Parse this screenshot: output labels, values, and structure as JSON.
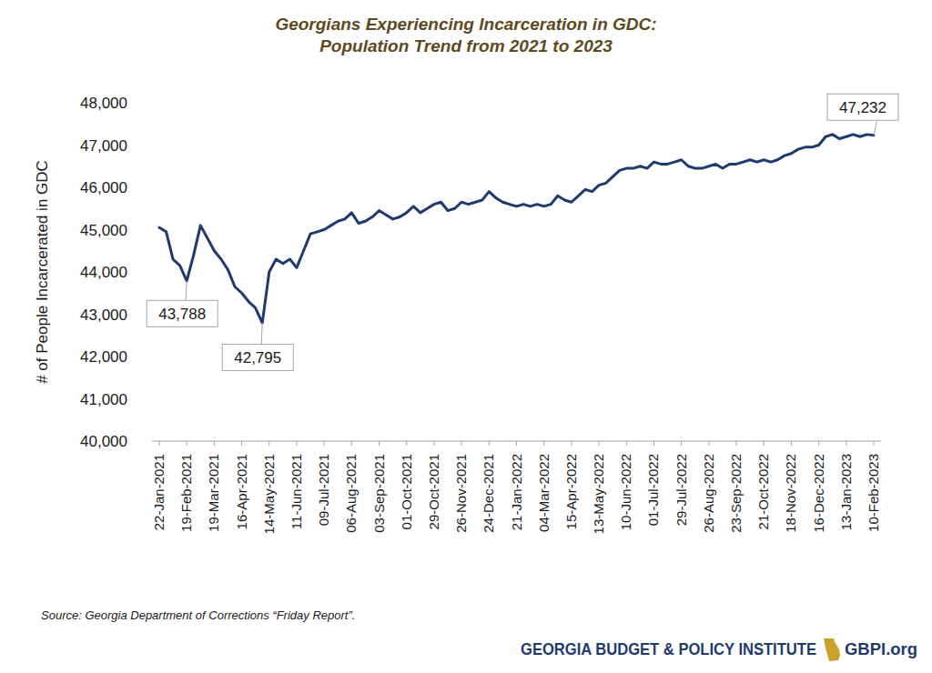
{
  "chart_data": {
    "type": "line",
    "title": [
      "Georgians Experiencing Incarceration in GDC:",
      "Population Trend from 2021 to 2023"
    ],
    "ylabel": "# of People Incarcerated in GDC",
    "color": "#1f3a6e",
    "grid": false,
    "categories": [
      "22-Jan-2021",
      null,
      null,
      null,
      "19-Feb-2021",
      null,
      null,
      null,
      "19-Mar-2021",
      null,
      null,
      null,
      "16-Apr-2021",
      null,
      null,
      null,
      "14-May-2021",
      null,
      null,
      null,
      "11-Jun-2021",
      null,
      null,
      null,
      "09-Jul-2021",
      null,
      null,
      null,
      "06-Aug-2021",
      null,
      null,
      null,
      "03-Sep-2021",
      null,
      null,
      null,
      "01-Oct-2021",
      null,
      null,
      null,
      "29-Oct-2021",
      null,
      null,
      null,
      "26-Nov-2021",
      null,
      null,
      null,
      "24-Dec-2021",
      null,
      null,
      null,
      "21-Jan-2022",
      null,
      null,
      null,
      "04-Mar-2022",
      null,
      null,
      null,
      "15-Apr-2022",
      null,
      null,
      null,
      "13-May-2022",
      null,
      null,
      null,
      "10-Jun-2022",
      null,
      null,
      null,
      "01-Jul-2022",
      null,
      null,
      null,
      "29-Jul-2022",
      null,
      null,
      null,
      "26-Aug-2022",
      null,
      null,
      null,
      "23-Sep-2022",
      null,
      null,
      null,
      "21-Oct-2022",
      null,
      null,
      null,
      "18-Nov-2022",
      null,
      null,
      null,
      "16-Dec-2022",
      null,
      null,
      null,
      "13-Jan-2023",
      null,
      null,
      null,
      "10-Feb-2023"
    ],
    "values": [
      45050,
      44950,
      44300,
      44150,
      43788,
      44400,
      45100,
      44800,
      44500,
      44300,
      44050,
      43650,
      43500,
      43300,
      43150,
      42795,
      44000,
      44300,
      44200,
      44300,
      44100,
      44500,
      44900,
      44950,
      45000,
      45100,
      45200,
      45250,
      45400,
      45150,
      45200,
      45300,
      45450,
      45350,
      45250,
      45300,
      45400,
      45550,
      45400,
      45500,
      45600,
      45650,
      45450,
      45500,
      45650,
      45600,
      45650,
      45700,
      45900,
      45750,
      45650,
      45600,
      45550,
      45600,
      45550,
      45600,
      45550,
      45600,
      45800,
      45700,
      45650,
      45800,
      45950,
      45900,
      46050,
      46100,
      46250,
      46400,
      46450,
      46450,
      46500,
      46450,
      46600,
      46550,
      46550,
      46600,
      46650,
      46500,
      46450,
      46450,
      46500,
      46550,
      46450,
      46550,
      46550,
      46600,
      46650,
      46600,
      46650,
      46600,
      46650,
      46750,
      46800,
      46900,
      46950,
      46950,
      47000,
      47200,
      47250,
      47150,
      47200,
      47250,
      47200,
      47250,
      47232
    ],
    "ylim": [
      40000,
      48000
    ],
    "yticks": [
      {
        "value": 40000,
        "label": "40,000"
      },
      {
        "value": 41000,
        "label": "41,000"
      },
      {
        "value": 42000,
        "label": "42,000"
      },
      {
        "value": 43000,
        "label": "43,000"
      },
      {
        "value": 44000,
        "label": "44,000"
      },
      {
        "value": 45000,
        "label": "45,000"
      },
      {
        "value": 46000,
        "label": "46,000"
      },
      {
        "value": 47000,
        "label": "47,000"
      },
      {
        "value": 48000,
        "label": "48,000"
      }
    ],
    "annotations": [
      {
        "index": 4,
        "value": 43788,
        "label": "43,788"
      },
      {
        "index": 15,
        "value": 42795,
        "label": "42,795"
      },
      {
        "index": 104,
        "value": 47232,
        "label": "47,232"
      }
    ],
    "source": "Source: Georgia Department of Corrections “Friday Report”.",
    "footer": "GEORGIA BUDGET & POLICY INSTITUTE",
    "footer_url": "GBPI.org"
  }
}
